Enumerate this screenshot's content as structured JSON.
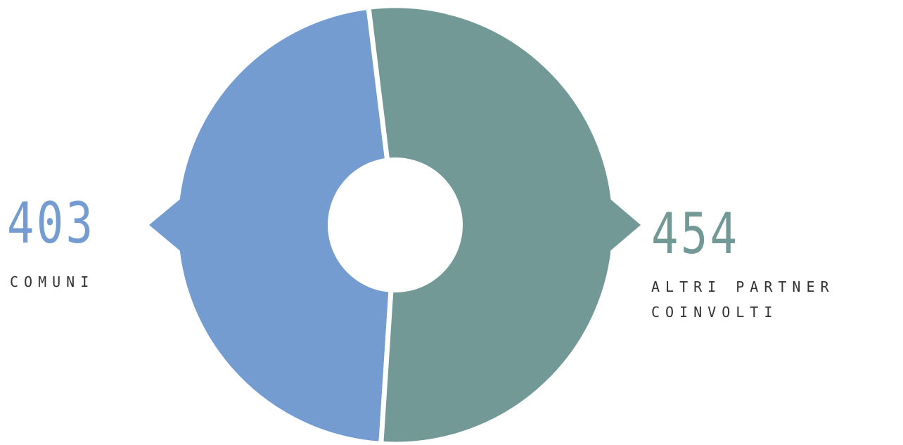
{
  "chart_data": {
    "type": "pie",
    "categories": [
      "COMUNI",
      "ALTRI PARTNER COINVOLTI"
    ],
    "values": [
      403,
      454
    ],
    "colors": [
      "#759cd1",
      "#739996"
    ],
    "title": "",
    "legend": "inline labels left and right"
  },
  "labels": {
    "comuni_value": "403",
    "comuni_label": "COMUNI",
    "partner_value": "454",
    "partner_label_line1": "ALTRI PARTNER",
    "partner_label_line2": "COINVOLTI"
  }
}
